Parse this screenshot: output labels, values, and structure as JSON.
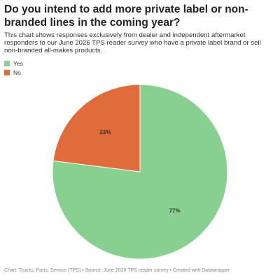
{
  "chart_data": {
    "type": "pie",
    "title": "Do you intend to add more private label or non-branded lines in the coming year?",
    "subtitle": "This chart shows responses exclusively from dealer and independent aftermarket responders to our June 2026 TPS reader survey who have a private label brand or sell non-branded all-makes products.",
    "categories": [
      "Yes",
      "No"
    ],
    "values": [
      77,
      23
    ],
    "value_labels": [
      "77%",
      "23%"
    ],
    "colors": [
      "#88d08f",
      "#e06c3c"
    ],
    "legend": "top-left",
    "source": "Chart: Trucks, Parts, Service (TPS) • Source: June 2026 TPS reader survey • Created with Datawrapper"
  }
}
